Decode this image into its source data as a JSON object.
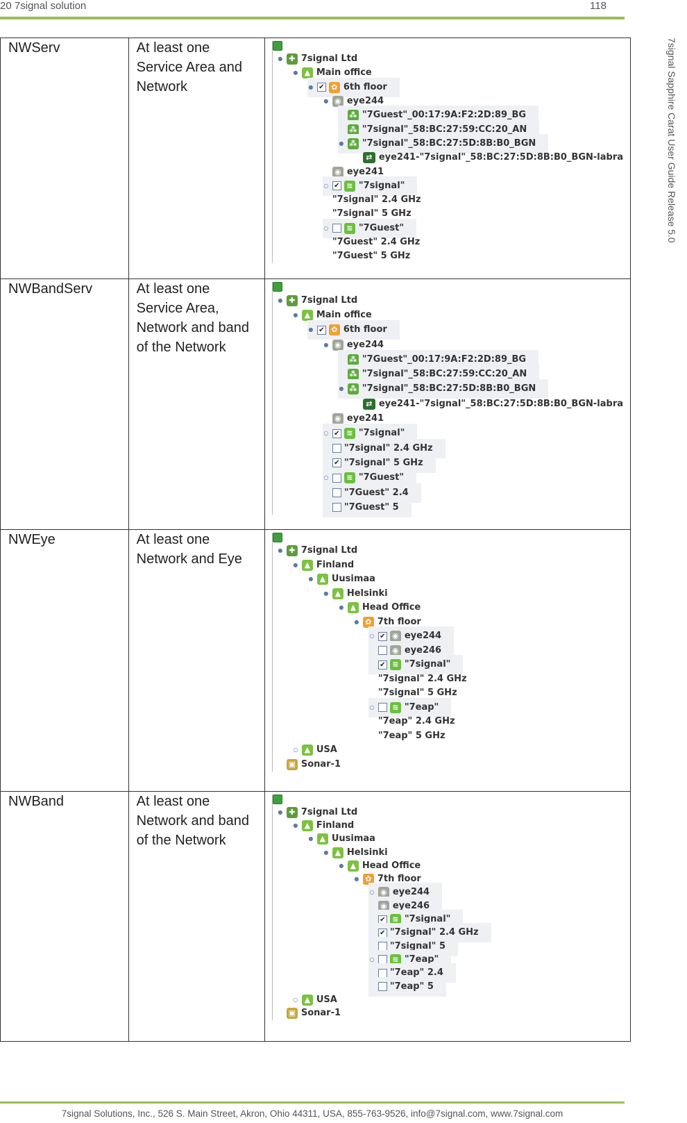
{
  "header": {
    "left": "20 7signal solution",
    "right": "118"
  },
  "side_text": "7signal Sapphire Carat User Guide Release 5.0",
  "rows": [
    {
      "code": "NWServ",
      "condition": "At least one Service Area and Network",
      "tree": [
        {
          "d": 0,
          "t": "7signal Ltd",
          "ic": "org",
          "tg": "-"
        },
        {
          "d": 1,
          "t": "Main office",
          "ic": "site",
          "tg": "-"
        },
        {
          "d": 2,
          "t": "6th floor",
          "ic": "floor",
          "tg": "-",
          "ck": "on",
          "hl": true
        },
        {
          "d": 3,
          "t": "eye244",
          "ic": "eye",
          "tg": "-"
        },
        {
          "d": 4,
          "t": "\"7Guest\"_00:17:9A:F2:2D:89_BG",
          "ic": "ap",
          "hl": true
        },
        {
          "d": 4,
          "t": "\"7signal\"_58:BC:27:59:CC:20_AN",
          "ic": "ap",
          "hl": true
        },
        {
          "d": 4,
          "t": "\"7signal\"_58:BC:27:5D:8B:B0_BGN",
          "ic": "ap",
          "tg": "-",
          "hl": true
        },
        {
          "d": 5,
          "t": "eye241-\"7signal\"_58:BC:27:5D:8B:B0_BGN-labra",
          "ic": "link"
        },
        {
          "d": 3,
          "t": "eye241",
          "ic": "eye"
        },
        {
          "d": 3,
          "t": "\"7signal\"",
          "ic": "ssid",
          "tg": "+",
          "ck": "on",
          "hl": true
        },
        {
          "d": 3,
          "t": "\"7signal\" 2.4 GHz"
        },
        {
          "d": 3,
          "t": "\"7signal\" 5 GHz"
        },
        {
          "d": 3,
          "t": "\"7Guest\"",
          "ic": "ssid",
          "tg": "+",
          "ck": "off",
          "hl": true
        },
        {
          "d": 3,
          "t": "\"7Guest\" 2.4 GHz"
        },
        {
          "d": 3,
          "t": "\"7Guest\" 5 GHz"
        }
      ]
    },
    {
      "code": "NWBandServ",
      "condition": "At least one Service Area, Network and band of the Network",
      "tree": [
        {
          "d": 0,
          "t": "7signal Ltd",
          "ic": "org",
          "tg": "-"
        },
        {
          "d": 1,
          "t": "Main office",
          "ic": "site",
          "tg": "-"
        },
        {
          "d": 2,
          "t": "6th floor",
          "ic": "floor",
          "tg": "-",
          "ck": "on",
          "hl": true
        },
        {
          "d": 3,
          "t": "eye244",
          "ic": "eye",
          "tg": "-"
        },
        {
          "d": 4,
          "t": "\"7Guest\"_00:17:9A:F2:2D:89_BG",
          "ic": "ap",
          "hl": true
        },
        {
          "d": 4,
          "t": "\"7signal\"_58:BC:27:59:CC:20_AN",
          "ic": "ap",
          "hl": true
        },
        {
          "d": 4,
          "t": "\"7signal\"_58:BC:27:5D:8B:B0_BGN",
          "ic": "ap",
          "tg": "-",
          "hl": true
        },
        {
          "d": 5,
          "t": "eye241-\"7signal\"_58:BC:27:5D:8B:B0_BGN-labra",
          "ic": "link"
        },
        {
          "d": 3,
          "t": "eye241",
          "ic": "eye"
        },
        {
          "d": 3,
          "t": "\"7signal\"",
          "ic": "ssid",
          "tg": "+",
          "ck": "on",
          "hl": true
        },
        {
          "d": 3,
          "t": "\"7signal\" 2.4 GHz",
          "ck": "off",
          "hl": true
        },
        {
          "d": 3,
          "t": "\"7signal\" 5 GHz",
          "ck": "on",
          "hl": true
        },
        {
          "d": 3,
          "t": "\"7Guest\"",
          "ic": "ssid",
          "tg": "+",
          "ck": "off",
          "hl": true
        },
        {
          "d": 3,
          "t": "\"7Guest\" 2.4",
          "ck": "off",
          "hl": true
        },
        {
          "d": 3,
          "t": "\"7Guest\" 5",
          "ck": "off",
          "hl": true
        }
      ]
    },
    {
      "code": "NWEye",
      "condition": "At least one Network and Eye",
      "tree": [
        {
          "d": 0,
          "t": "7signal Ltd",
          "ic": "org",
          "tg": "-"
        },
        {
          "d": 1,
          "t": "Finland",
          "ic": "site",
          "tg": "-"
        },
        {
          "d": 2,
          "t": "Uusimaa",
          "ic": "site",
          "tg": "-"
        },
        {
          "d": 3,
          "t": "Helsinki",
          "ic": "site",
          "tg": "-"
        },
        {
          "d": 4,
          "t": "Head Office",
          "ic": "site",
          "tg": "-"
        },
        {
          "d": 5,
          "t": "7th floor",
          "ic": "floor",
          "tg": "-"
        },
        {
          "d": 6,
          "t": "eye244",
          "ic": "eye",
          "tg": "+",
          "ck": "on",
          "hl": true
        },
        {
          "d": 6,
          "t": "eye246",
          "ic": "eye",
          "ck": "off",
          "hl": true
        },
        {
          "d": 6,
          "t": "\"7signal\"",
          "ic": "ssid",
          "ck": "on",
          "hl": true
        },
        {
          "d": 6,
          "t": "\"7signal\" 2.4 GHz"
        },
        {
          "d": 6,
          "t": "\"7signal\" 5 GHz"
        },
        {
          "d": 6,
          "t": "\"7eap\"",
          "ic": "ssid",
          "tg": "+",
          "ck": "off",
          "hl": true
        },
        {
          "d": 6,
          "t": "\"7eap\" 2.4 GHz"
        },
        {
          "d": 6,
          "t": "\"7eap\" 5 GHz"
        },
        {
          "d": 1,
          "t": "USA",
          "ic": "site",
          "tg": "+"
        },
        {
          "d": 0,
          "t": "Sonar-1",
          "ic": "sonar"
        }
      ]
    },
    {
      "code": "NWBand",
      "condition": "At least one Network and band of the Network",
      "tree": [
        {
          "d": 0,
          "t": "7signal Ltd",
          "ic": "org",
          "tg": "-"
        },
        {
          "d": 1,
          "t": "Finland",
          "ic": "site",
          "tg": "-"
        },
        {
          "d": 2,
          "t": "Uusimaa",
          "ic": "site",
          "tg": "-"
        },
        {
          "d": 3,
          "t": "Helsinki",
          "ic": "site",
          "tg": "-"
        },
        {
          "d": 4,
          "t": "Head Office",
          "ic": "site",
          "tg": "-"
        },
        {
          "d": 5,
          "t": "7th floor",
          "ic": "floor",
          "tg": "-"
        },
        {
          "d": 6,
          "t": "eye244",
          "ic": "eye",
          "tg": "+",
          "hl": true
        },
        {
          "d": 6,
          "t": "eye246",
          "ic": "eye",
          "hl": true
        },
        {
          "d": 6,
          "t": "\"7signal\"",
          "ic": "ssid",
          "ck": "on",
          "hl": true
        },
        {
          "d": 6,
          "t": "\"7signal\" 2.4 GHz",
          "ck": "on",
          "hl": true
        },
        {
          "d": 6,
          "t": "\"7signal\" 5",
          "ck": "off",
          "hl": true
        },
        {
          "d": 6,
          "t": "\"7eap\"",
          "ic": "ssid",
          "tg": "+",
          "ck": "off",
          "hl": true
        },
        {
          "d": 6,
          "t": "\"7eap\" 2.4",
          "ck": "off",
          "hl": true
        },
        {
          "d": 6,
          "t": "\"7eap\" 5",
          "ck": "off",
          "hl": true
        },
        {
          "d": 1,
          "t": "USA",
          "ic": "site",
          "tg": "+"
        },
        {
          "d": 0,
          "t": "Sonar-1",
          "ic": "sonar"
        }
      ]
    }
  ],
  "footer": "7signal Solutions, Inc., 526 S. Main Street, Akron, Ohio 44311, USA, 855-763-9526, info@7signal.com, www.7signal.com"
}
